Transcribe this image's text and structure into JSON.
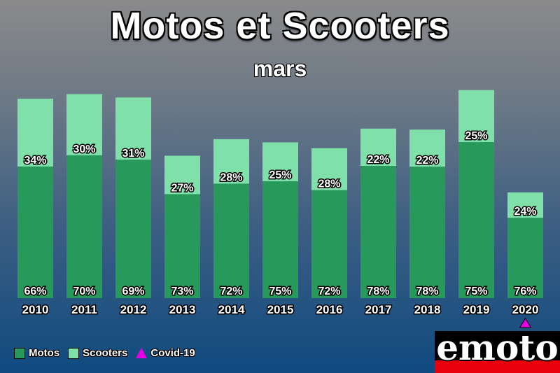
{
  "chart_data": {
    "type": "bar",
    "title": "Motos et Scooters",
    "subtitle": "mars",
    "categories": [
      "2010",
      "2011",
      "2012",
      "2013",
      "2014",
      "2015",
      "2016",
      "2017",
      "2018",
      "2019",
      "2020"
    ],
    "series": [
      {
        "name": "Motos",
        "color": "#27995a",
        "values": [
          66,
          70,
          69,
          73,
          72,
          75,
          72,
          78,
          78,
          75,
          76
        ]
      },
      {
        "name": "Scooters",
        "color": "#80e0aa",
        "values": [
          34,
          30,
          31,
          27,
          28,
          25,
          28,
          22,
          22,
          25,
          24
        ]
      }
    ],
    "relative_totals": [
      1.0,
      1.023,
      1.006,
      0.714,
      0.797,
      0.781,
      0.752,
      0.85,
      0.845,
      1.043,
      0.53
    ],
    "markers": [
      {
        "name": "Covid-19",
        "category": "2020",
        "shape": "triangle",
        "color": "#e600e6"
      }
    ],
    "legend_position": "bottom-left",
    "grid": false
  },
  "logo": {
    "text": "emoto"
  }
}
